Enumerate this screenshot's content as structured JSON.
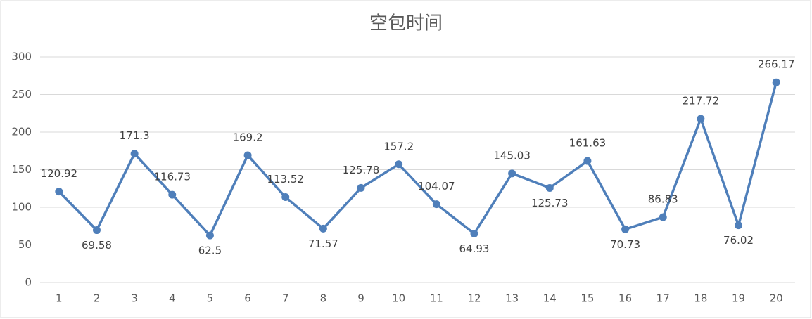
{
  "chart_data": {
    "type": "line",
    "title": "空包时间",
    "categories": [
      "1",
      "2",
      "3",
      "4",
      "5",
      "6",
      "7",
      "8",
      "9",
      "10",
      "11",
      "12",
      "13",
      "14",
      "15",
      "16",
      "17",
      "18",
      "19",
      "20"
    ],
    "series": [
      {
        "name": "空包时间",
        "color": "#4f7fba",
        "values": [
          120.92,
          69.58,
          171.3,
          116.73,
          62.5,
          169.2,
          113.52,
          71.57,
          125.78,
          157.2,
          104.07,
          64.93,
          145.03,
          125.73,
          161.63,
          70.73,
          86.83,
          217.72,
          76.02,
          266.17
        ]
      }
    ],
    "ylim": [
      0,
      300
    ],
    "yticks": [
      0,
      50,
      100,
      150,
      200,
      250,
      300
    ],
    "grid": true
  }
}
